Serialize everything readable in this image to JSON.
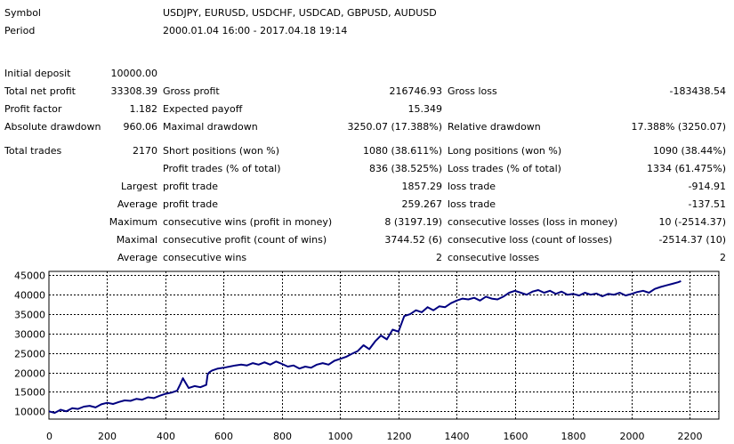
{
  "info": {
    "symbol_label": "Symbol",
    "symbol_value": "USDJPY, EURUSD, USDCHF, USDCAD, GBPUSD, AUDUSD",
    "period_label": "Period",
    "period_value": "2000.01.04 16:00 - 2017.04.18 19:14"
  },
  "stats": {
    "initial_deposit_label": "Initial deposit",
    "initial_deposit": "10000.00",
    "total_net_profit_label": "Total net profit",
    "total_net_profit": "33308.39",
    "gross_profit_label": "Gross profit",
    "gross_profit": "216746.93",
    "gross_loss_label": "Gross loss",
    "gross_loss": "-183438.54",
    "profit_factor_label": "Profit factor",
    "profit_factor": "1.182",
    "expected_payoff_label": "Expected payoff",
    "expected_payoff": "15.349",
    "absolute_drawdown_label": "Absolute drawdown",
    "absolute_drawdown": "960.06",
    "maximal_drawdown_label": "Maximal drawdown",
    "maximal_drawdown": "3250.07 (17.388%)",
    "relative_drawdown_label": "Relative drawdown",
    "relative_drawdown": "17.388% (3250.07)",
    "total_trades_label": "Total trades",
    "total_trades": "2170",
    "short_positions_label": "Short positions (won %)",
    "short_positions": "1080 (38.611%)",
    "long_positions_label": "Long positions (won %)",
    "long_positions": "1090 (38.44%)",
    "profit_trades_label": "Profit trades (% of total)",
    "profit_trades": "836 (38.525%)",
    "loss_trades_label": "Loss trades (% of total)",
    "loss_trades": "1334 (61.475%)",
    "largest_label": "Largest",
    "largest_profit_label": "profit trade",
    "largest_profit": "1857.29",
    "largest_loss_label": "loss trade",
    "largest_loss": "-914.91",
    "average_label": "Average",
    "average_profit_label": "profit trade",
    "average_profit": "259.267",
    "average_loss_label": "loss trade",
    "average_loss": "-137.51",
    "maximum_label": "Maximum",
    "max_cons_wins_label": "consecutive wins (profit in money)",
    "max_cons_wins": "8 (3197.19)",
    "max_cons_losses_label": "consecutive losses (loss in money)",
    "max_cons_losses": "10 (-2514.37)",
    "maximal_label": "Maximal",
    "maximal_cons_profit_label": "consecutive profit (count of wins)",
    "maximal_cons_profit": "3744.52 (6)",
    "maximal_cons_loss_label": "consecutive loss (count of losses)",
    "maximal_cons_loss": "-2514.37 (10)",
    "average2_label": "Average",
    "avg_cons_wins_label": "consecutive wins",
    "avg_cons_wins": "2",
    "avg_cons_losses_label": "consecutive losses",
    "avg_cons_losses": "2"
  },
  "chart_data": {
    "type": "line",
    "x_ticks": [
      0,
      200,
      400,
      600,
      800,
      1000,
      1200,
      1400,
      1600,
      1800,
      2000,
      2200
    ],
    "y_ticks": [
      10000,
      15000,
      20000,
      25000,
      30000,
      35000,
      40000,
      45000
    ],
    "xlim": [
      0,
      2300
    ],
    "ylim": [
      8000,
      46000
    ],
    "grid": true,
    "line_color": "#000080",
    "series": [
      {
        "x": [
          0,
          20,
          40,
          60,
          80,
          100,
          120,
          140,
          160,
          180,
          200,
          220,
          240,
          260,
          280,
          300,
          320,
          340,
          360,
          380,
          400,
          420,
          440,
          450,
          460,
          470,
          480,
          500,
          520,
          540,
          545,
          550,
          560,
          580,
          600,
          620,
          640,
          660,
          680,
          700,
          720,
          740,
          760,
          780,
          800,
          820,
          840,
          860,
          880,
          900,
          920,
          940,
          960,
          980,
          1000,
          1020,
          1040,
          1060,
          1080,
          1100,
          1120,
          1140,
          1160,
          1180,
          1200,
          1220,
          1240,
          1260,
          1280,
          1300,
          1320,
          1340,
          1360,
          1380,
          1400,
          1420,
          1440,
          1460,
          1480,
          1500,
          1520,
          1540,
          1560,
          1580,
          1600,
          1620,
          1640,
          1660,
          1680,
          1700,
          1720,
          1740,
          1760,
          1780,
          1800,
          1820,
          1840,
          1860,
          1880,
          1900,
          1920,
          1940,
          1960,
          1980,
          2000,
          2020,
          2040,
          2060,
          2080,
          2100,
          2120,
          2140,
          2160,
          2170
        ],
        "y": [
          10000,
          9600,
          10400,
          10000,
          10800,
          10600,
          11200,
          11400,
          11000,
          11800,
          12200,
          11900,
          12400,
          12800,
          12700,
          13200,
          13000,
          13600,
          13400,
          14000,
          14500,
          14800,
          15300,
          16800,
          18500,
          17200,
          16000,
          16500,
          16200,
          16800,
          19500,
          20000,
          20500,
          21000,
          21200,
          21500,
          21800,
          22000,
          21800,
          22400,
          22000,
          22600,
          22000,
          22800,
          22200,
          21500,
          21800,
          21000,
          21500,
          21200,
          22000,
          22400,
          22000,
          23000,
          23500,
          24000,
          24800,
          25500,
          27000,
          26000,
          28000,
          29500,
          28500,
          31000,
          30500,
          34500,
          35000,
          36000,
          35500,
          36800,
          36000,
          37000,
          36800,
          37800,
          38500,
          39000,
          38800,
          39200,
          38500,
          39500,
          39000,
          38800,
          39500,
          40500,
          41000,
          40500,
          40000,
          40800,
          41200,
          40500,
          41000,
          40200,
          40800,
          40000,
          40200,
          39800,
          40500,
          40000,
          40300,
          39600,
          40200,
          40000,
          40500,
          39800,
          40200,
          40700,
          41000,
          40500,
          41500,
          42000,
          42400,
          42800,
          43200,
          43500
        ]
      }
    ]
  }
}
